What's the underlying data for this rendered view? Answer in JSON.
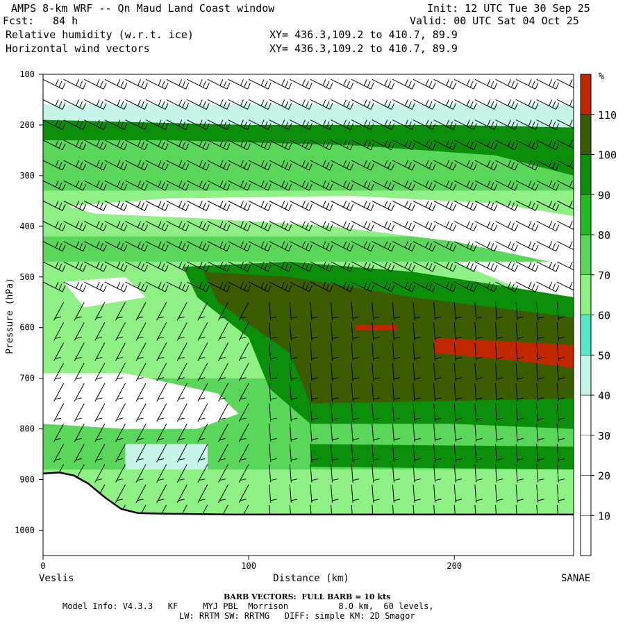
{
  "header": {
    "title": "AMPS 8-km WRF -- Qn Maud Land Coast window",
    "init": "Init: 12 UTC Tue 30 Sep 25",
    "fcst_label": "Fcst:",
    "fcst_value": "84 h",
    "valid": "Valid: 00 UTC Sat 04 Oct 25",
    "field1": "Relative humidity (w.r.t. ice)",
    "field2": "Horizontal wind vectors",
    "xy1": "XY= 436.3,109.2 to 410.7, 89.9",
    "xy2": "XY= 436.3,109.2 to 410.7, 89.9"
  },
  "footer": {
    "barb_note": "BARB VECTORS:  FULL BARB = 10 kts",
    "model_info": "Model Info: V4.3.3   KF     MYJ PBL  Morrison          8.0 km,  60 levels,",
    "model_info2": "LW: RRTM SW: RRTMG   DIFF: simple KM: 2D Smagor"
  },
  "colors": {
    "c0": "#ffffff",
    "c1": "#ffffff",
    "c2": "#ffffff",
    "c3": "#c8f5ea",
    "c4": "#5ce6c8",
    "c5": "#8ff086",
    "c6": "#5ad75a",
    "c7": "#1fba1f",
    "c8": "#0b8f0b",
    "c9": "#3b5c00",
    "c10": "#c02800",
    "terrain": "#000000"
  },
  "chart_data": {
    "type": "cross-section contour",
    "xlabel": "Distance (km)",
    "ylabel": "Pressure (hPa)",
    "x_ticks": [
      0,
      100,
      200
    ],
    "y_ticks": [
      100,
      200,
      300,
      400,
      500,
      600,
      700,
      800,
      900,
      1000
    ],
    "xlim": [
      0,
      258
    ],
    "ylim": [
      100,
      1050
    ],
    "left_label": "Veslis",
    "right_label": "SANAE",
    "colorbar_unit": "%",
    "colorbar_levels": [
      10,
      20,
      30,
      40,
      50,
      60,
      70,
      80,
      90,
      100,
      110
    ],
    "terrain_pressure": [
      [
        0,
        888
      ],
      [
        8,
        886
      ],
      [
        15,
        892
      ],
      [
        22,
        908
      ],
      [
        30,
        935
      ],
      [
        38,
        958
      ],
      [
        46,
        966
      ],
      [
        55,
        967
      ],
      [
        70,
        968
      ],
      [
        90,
        969
      ],
      [
        258,
        969
      ]
    ],
    "rh_regions": [
      {
        "level": 3,
        "points": [
          [
            0,
            160
          ],
          [
            258,
            160
          ],
          [
            258,
            260
          ],
          [
            180,
            230
          ],
          [
            80,
            220
          ],
          [
            0,
            215
          ]
        ]
      },
      {
        "level": 8,
        "points": [
          [
            0,
            190
          ],
          [
            100,
            200
          ],
          [
            200,
            200
          ],
          [
            258,
            205
          ],
          [
            258,
            300
          ],
          [
            220,
            260
          ],
          [
            150,
            240
          ],
          [
            60,
            230
          ],
          [
            0,
            230
          ]
        ]
      },
      {
        "level": 0,
        "points": [
          [
            12,
            360
          ],
          [
            60,
            345
          ],
          [
            150,
            340
          ],
          [
            220,
            355
          ],
          [
            258,
            380
          ],
          [
            258,
            480
          ],
          [
            200,
            430
          ],
          [
            140,
            400
          ],
          [
            80,
            385
          ],
          [
            25,
            375
          ]
        ]
      },
      {
        "level": 0,
        "points": [
          [
            200,
            470
          ],
          [
            258,
            470
          ],
          [
            258,
            560
          ],
          [
            230,
            520
          ]
        ]
      },
      {
        "level": 8,
        "points": [
          [
            68,
            480
          ],
          [
            120,
            470
          ],
          [
            180,
            490
          ],
          [
            258,
            540
          ],
          [
            258,
            800
          ],
          [
            200,
            790
          ],
          [
            130,
            790
          ],
          [
            110,
            720
          ],
          [
            100,
            620
          ],
          [
            75,
            540
          ]
        ]
      },
      {
        "level": 9,
        "points": [
          [
            78,
            490
          ],
          [
            120,
            500
          ],
          [
            180,
            540
          ],
          [
            258,
            580
          ],
          [
            258,
            740
          ],
          [
            130,
            750
          ],
          [
            120,
            650
          ],
          [
            85,
            550
          ]
        ]
      },
      {
        "level": 10,
        "points": [
          [
            152,
            595
          ],
          [
            172,
            595
          ],
          [
            172,
            605
          ],
          [
            152,
            605
          ]
        ]
      },
      {
        "level": 10,
        "points": [
          [
            190,
            620
          ],
          [
            240,
            630
          ],
          [
            258,
            635
          ],
          [
            258,
            680
          ],
          [
            230,
            665
          ],
          [
            190,
            650
          ]
        ]
      },
      {
        "level": 8,
        "points": [
          [
            130,
            830
          ],
          [
            258,
            835
          ],
          [
            258,
            880
          ],
          [
            130,
            875
          ]
        ]
      },
      {
        "level": 0,
        "points": [
          [
            0,
            690
          ],
          [
            40,
            690
          ],
          [
            85,
            730
          ],
          [
            95,
            770
          ],
          [
            75,
            800
          ],
          [
            40,
            800
          ],
          [
            0,
            790
          ]
        ]
      },
      {
        "level": 0,
        "points": [
          [
            10,
            510
          ],
          [
            40,
            500
          ],
          [
            50,
            540
          ],
          [
            20,
            560
          ]
        ]
      },
      {
        "level": 3,
        "points": [
          [
            40,
            830
          ],
          [
            80,
            830
          ],
          [
            80,
            880
          ],
          [
            40,
            880
          ]
        ]
      }
    ],
    "wind_barb_grid": {
      "x_spacing_km": 10,
      "levels_hpa": [
        110,
        150,
        190,
        230,
        270,
        310,
        350,
        390,
        430,
        470,
        510,
        550,
        590,
        630,
        670,
        710,
        750,
        790,
        830,
        870,
        910,
        950
      ]
    }
  }
}
